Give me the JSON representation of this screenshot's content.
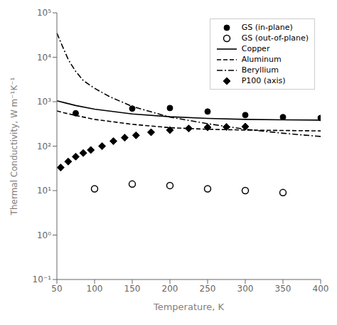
{
  "chart_data": {
    "type": "line",
    "xlabel": "Temperature, K",
    "ylabel": "Thermal Conductivity, W m⁻¹K⁻¹",
    "log": "y",
    "legend": "upper right",
    "grid": false,
    "xlim": [
      50,
      400
    ],
    "xticks": [
      50,
      100,
      150,
      200,
      250,
      300,
      350,
      400
    ],
    "ylim": [
      0.1,
      100000
    ],
    "yticks": [
      {
        "value": 0.1,
        "label": "10⁻¹"
      },
      {
        "value": 1,
        "label": "10⁰"
      },
      {
        "value": 10,
        "label": "10¹"
      },
      {
        "value": 100,
        "label": "10²"
      },
      {
        "value": 1000,
        "label": "10³"
      },
      {
        "value": 10000,
        "label": "10⁴"
      },
      {
        "value": 100000,
        "label": "10⁵"
      }
    ],
    "series": [
      {
        "name": "GS (in-plane)",
        "type": "scatter",
        "color": "#000000",
        "marker": "circle",
        "x": [
          75,
          150,
          200,
          250,
          300,
          350,
          400
        ],
        "values": [
          550,
          700,
          720,
          600,
          500,
          450,
          430
        ]
      },
      {
        "name": "GS (out-of-plane)",
        "type": "scatter",
        "color": "#000000",
        "marker": "open_circle",
        "x": [
          100,
          150,
          200,
          250,
          300,
          350
        ],
        "values": [
          11,
          14,
          13,
          11,
          10,
          9
        ]
      },
      {
        "name": "Copper",
        "type": "line",
        "color": "#000000",
        "line_style": "solid",
        "x": [
          50,
          60,
          75,
          100,
          150,
          200,
          250,
          300,
          350,
          400
        ],
        "values": [
          1050,
          950,
          820,
          680,
          530,
          460,
          420,
          400,
          390,
          385
        ]
      },
      {
        "name": "Aluminum",
        "type": "line",
        "color": "#000000",
        "line_style": "dashed",
        "x": [
          50,
          60,
          75,
          100,
          150,
          200,
          250,
          300,
          350,
          400
        ],
        "values": [
          620,
          560,
          490,
          400,
          310,
          260,
          240,
          230,
          225,
          220
        ]
      },
      {
        "name": "Beryllium",
        "type": "line",
        "color": "#000000",
        "line_style": "dashdot",
        "x": [
          50,
          55,
          60,
          65,
          70,
          75,
          85,
          100,
          120,
          150,
          200,
          250,
          300,
          350,
          400
        ],
        "values": [
          35000,
          22000,
          14000,
          9000,
          6500,
          4800,
          3000,
          2000,
          1300,
          780,
          450,
          320,
          240,
          195,
          165
        ]
      },
      {
        "name": "P100 (axis)",
        "type": "scatter",
        "color": "#000000",
        "marker": "diamond",
        "x": [
          55,
          65,
          75,
          85,
          95,
          110,
          125,
          140,
          155,
          175,
          200,
          225,
          250,
          275,
          300
        ],
        "values": [
          33,
          45,
          58,
          70,
          82,
          100,
          130,
          155,
          175,
          205,
          230,
          250,
          265,
          270,
          275
        ]
      }
    ]
  }
}
